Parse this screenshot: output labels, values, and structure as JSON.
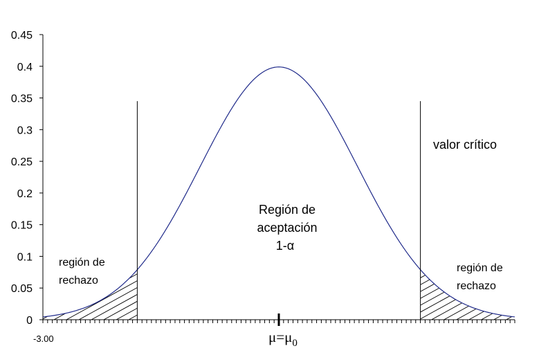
{
  "chart_data": {
    "type": "line",
    "title": "",
    "xlabel": "",
    "ylabel": "",
    "curve": "standard normal density",
    "xlim": [
      -3.0,
      3.0
    ],
    "ylim": [
      0,
      0.45
    ],
    "y_ticks": [
      "0",
      "0.05",
      "0.1",
      "0.15",
      "0.2",
      "0.25",
      "0.3",
      "0.35",
      "0.4",
      "0.45"
    ],
    "x_tick_label_left": "-3.00",
    "center_label": "μ=μ",
    "center_label_subscript": "0",
    "critical_values": [
      -1.8,
      1.8
    ],
    "critical_line_top": 0.345,
    "peak_value": 0.399,
    "shaded_regions": [
      "left tail",
      "right tail"
    ],
    "annotations": {
      "left_rejection_line1": "región de",
      "left_rejection_line2": "rechazo",
      "right_rejection_line1": "región de",
      "right_rejection_line2": "rechazo",
      "acceptance_line1": "Región de",
      "acceptance_line2": "aceptación",
      "acceptance_line3": "1-α",
      "critical_value": "valor crítico"
    },
    "grid": false,
    "legend": "none",
    "colors": {
      "curve": "#1f2a8a",
      "lines": "#000000"
    }
  }
}
